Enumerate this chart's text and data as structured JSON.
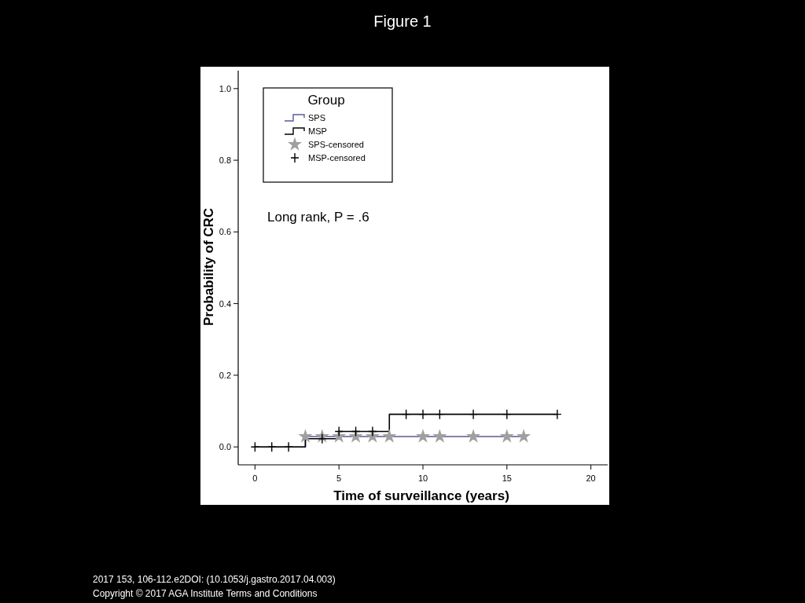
{
  "chart_data": {
    "type": "step",
    "title": "Figure 1",
    "xlabel": "Time of surveillance (years)",
    "ylabel": "Probability of CRC",
    "legend_title": "Group",
    "legend": "top left",
    "xlim": [
      -1,
      21
    ],
    "xticks": [
      0,
      5,
      10,
      15,
      20
    ],
    "ylim": [
      -0.05,
      1.05
    ],
    "yticks": [
      {
        "value": 0,
        "label": "0.0"
      },
      {
        "value": 0.2,
        "label": "0.2"
      },
      {
        "value": 0.4,
        "label": "0.4"
      },
      {
        "value": 0.6,
        "label": "0.6"
      },
      {
        "value": 0.8,
        "label": "0.8"
      },
      {
        "value": 1,
        "label": "1.0"
      }
    ],
    "grid": false,
    "series": [
      {
        "name": "SPS",
        "type": "step",
        "color": "#5a5a9c",
        "x": [
          0,
          3,
          16
        ],
        "values": [
          0,
          0.029,
          0.029
        ]
      },
      {
        "name": "MSP",
        "type": "step",
        "color": "#000000",
        "x": [
          0,
          3,
          5,
          8,
          18
        ],
        "values": [
          0,
          0.023,
          0.043,
          0.091,
          0.091
        ]
      },
      {
        "name": "SPS-censored",
        "type": "scatter",
        "marker": "star",
        "color": "#a0a0a0",
        "x": [
          3,
          4,
          5,
          6,
          7,
          8,
          10,
          11,
          13,
          15,
          16
        ],
        "values": [
          0.029,
          0.029,
          0.029,
          0.029,
          0.029,
          0.029,
          0.029,
          0.029,
          0.029,
          0.029,
          0.029
        ]
      },
      {
        "name": "MSP-censored",
        "type": "scatter",
        "marker": "cross",
        "color": "#000000",
        "x": [
          0,
          1,
          2,
          4,
          5,
          6,
          7,
          9,
          10,
          11,
          13,
          15,
          18
        ],
        "values": [
          0,
          0,
          0,
          0.023,
          0.043,
          0.043,
          0.043,
          0.091,
          0.091,
          0.091,
          0.091,
          0.091,
          0.091
        ]
      }
    ],
    "annotations": [
      "Long rank, P = .6",
      "2017 153, 106-112.e2DOI: (10.1053/j.gastro.2017.04.003)",
      "Copyright © 2017 AGA Institute Terms and Conditions"
    ]
  }
}
